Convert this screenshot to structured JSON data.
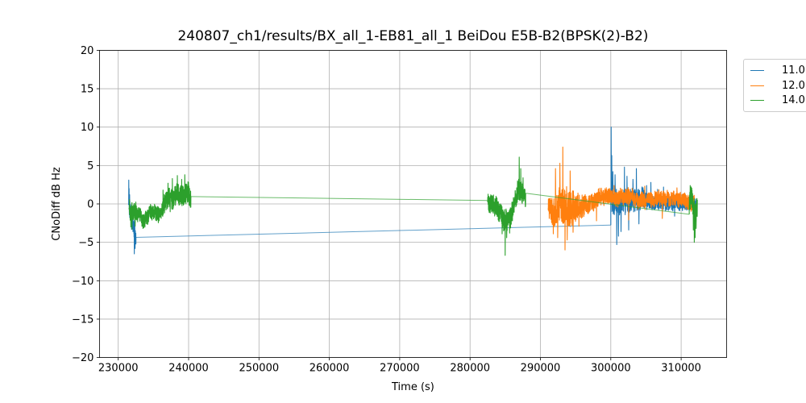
{
  "figure": {
    "title": "240807_ch1/results/BX_all_1-EB81_all_1 BeiDou E5B-B2(BPSK(2)-B2)",
    "xlabel": "Time (s)",
    "ylabel": "CNoDiff dB Hz"
  },
  "chart_data": {
    "type": "line",
    "title": "240807_ch1/results/BX_all_1-EB81_all_1 BeiDou E5B-B2(BPSK(2)-B2)",
    "xlabel": "Time (s)",
    "ylabel": "CNoDiff dB Hz",
    "xlim": [
      227330,
      316460
    ],
    "ylim": [
      -20,
      20
    ],
    "xticks": [
      230000,
      240000,
      250000,
      260000,
      270000,
      280000,
      290000,
      300000,
      310000
    ],
    "yticks": [
      -20,
      -15,
      -10,
      -5,
      0,
      5,
      10,
      15,
      20
    ],
    "grid": true,
    "grid_color": "#b0b0b0",
    "legend": {
      "position": "outside-upper-right",
      "entries": [
        {
          "label": "11.0",
          "color": "#1f77b4"
        },
        {
          "label": "12.0",
          "color": "#ff7f0e"
        },
        {
          "label": "14.0",
          "color": "#2ca02c"
        }
      ]
    },
    "series": [
      {
        "name": "11.0",
        "color": "#1f77b4",
        "segments": [
          {
            "kind": "noise",
            "x0": 231460,
            "x1": 232520,
            "n": 90,
            "seed": 11,
            "mean": [
              [
                0,
                -0.2
              ],
              [
                0.25,
                -1.0
              ],
              [
                0.5,
                -1.8
              ],
              [
                0.75,
                -3.2
              ],
              [
                1,
                -4.3
              ]
            ],
            "amp": [
              [
                0,
                1.1
              ],
              [
                1,
                1.2
              ]
            ],
            "spikes": [
              [
                0.03,
                3.1
              ],
              [
                0.08,
                2.0
              ],
              [
                0.15,
                1.2
              ],
              [
                0.4,
                -3.3
              ],
              [
                0.6,
                -3.6
              ],
              [
                0.78,
                -6.5
              ],
              [
                0.88,
                -5.8
              ]
            ],
            "y_end": -4.35
          },
          {
            "kind": "line",
            "points": [
              [
                232520,
                -4.35
              ],
              [
                300000,
                -2.75
              ]
            ]
          },
          {
            "kind": "noise",
            "x0": 300000,
            "x1": 312100,
            "n": 700,
            "seed": 12,
            "lead_in": [
              300000,
              -2.75
            ],
            "walk": [
              0.18,
              0.45
            ],
            "mean": [
              [
                0,
                0.6
              ],
              [
                0.3,
                0.55
              ],
              [
                0.6,
                0.45
              ],
              [
                1,
                0.25
              ]
            ],
            "amp": [
              [
                0,
                1.6
              ],
              [
                0.35,
                1.5
              ],
              [
                0.45,
                1.0
              ],
              [
                0.7,
                0.9
              ],
              [
                1,
                0.8
              ]
            ],
            "spikes": [
              [
                0.004,
                10.0
              ],
              [
                0.012,
                6.3
              ],
              [
                0.025,
                4.2
              ],
              [
                0.05,
                3.8
              ],
              [
                0.07,
                -5.3
              ],
              [
                0.09,
                -4.2
              ],
              [
                0.12,
                -3.6
              ],
              [
                0.16,
                4.8
              ],
              [
                0.19,
                3.6
              ],
              [
                0.21,
                -3.4
              ],
              [
                0.26,
                3.2
              ],
              [
                0.3,
                4.6
              ],
              [
                0.33,
                -2.6
              ],
              [
                0.42,
                2.4
              ],
              [
                0.47,
                2.8
              ],
              [
                0.55,
                1.9
              ],
              [
                0.62,
                2.2
              ],
              [
                0.75,
                -1.6
              ]
            ]
          }
        ]
      },
      {
        "name": "12.0",
        "color": "#ff7f0e",
        "segments": [
          {
            "kind": "noise",
            "x0": 291100,
            "x1": 311900,
            "n": 1200,
            "seed": 21,
            "mean": [
              [
                0,
                -0.4
              ],
              [
                0.08,
                -0.5
              ],
              [
                0.16,
                -0.05
              ],
              [
                0.3,
                0.3
              ],
              [
                0.5,
                0.45
              ],
              [
                0.7,
                0.35
              ],
              [
                0.85,
                0.15
              ],
              [
                1,
                -0.1
              ]
            ],
            "amp": [
              [
                0,
                1.4
              ],
              [
                0.03,
                1.8
              ],
              [
                0.08,
                2.6
              ],
              [
                0.14,
                2.6
              ],
              [
                0.2,
                1.9
              ],
              [
                0.26,
                1.3
              ],
              [
                0.35,
                1.1
              ],
              [
                0.6,
                1.0
              ],
              [
                1,
                0.95
              ]
            ],
            "spikes": [
              [
                0.035,
                -3.9
              ],
              [
                0.05,
                4.6
              ],
              [
                0.065,
                -4.4
              ],
              [
                0.08,
                5.3
              ],
              [
                0.1,
                7.4
              ],
              [
                0.115,
                -6.0
              ],
              [
                0.13,
                -4.7
              ],
              [
                0.15,
                4.3
              ],
              [
                0.17,
                -3.7
              ],
              [
                0.21,
                -2.9
              ],
              [
                0.33,
                -2.2
              ],
              [
                0.45,
                2.4
              ],
              [
                0.55,
                -2.1
              ],
              [
                0.66,
                2.3
              ],
              [
                0.78,
                -1.9
              ],
              [
                0.88,
                2.1
              ]
            ]
          }
        ]
      },
      {
        "name": "14.0",
        "color": "#2ca02c",
        "segments": [
          {
            "kind": "noise",
            "x0": 231520,
            "x1": 240340,
            "n": 660,
            "seed": 41,
            "mean": [
              [
                0,
                -0.8
              ],
              [
                0.08,
                -1.3
              ],
              [
                0.2,
                -1.75
              ],
              [
                0.35,
                -1.6
              ],
              [
                0.45,
                -1.5
              ],
              [
                0.52,
                -1.1
              ],
              [
                0.58,
                -0.4
              ],
              [
                0.63,
                0.3
              ],
              [
                0.68,
                0.6
              ],
              [
                0.73,
                0.35
              ],
              [
                0.78,
                0.9
              ],
              [
                0.84,
                0.55
              ],
              [
                0.9,
                0.95
              ],
              [
                1,
                0.9
              ]
            ],
            "amp": [
              [
                0,
                1.3
              ],
              [
                0.15,
                1.0
              ],
              [
                0.5,
                1.0
              ],
              [
                0.62,
                1.35
              ],
              [
                1,
                1.35
              ]
            ],
            "spikes": [
              [
                0.03,
                -3.0
              ],
              [
                0.05,
                -3.3
              ],
              [
                0.1,
                -2.9
              ],
              [
                0.24,
                -3.1
              ],
              [
                0.55,
                1.8
              ],
              [
                0.63,
                2.7
              ],
              [
                0.7,
                3.3
              ],
              [
                0.78,
                3.7
              ],
              [
                0.85,
                3.2
              ],
              [
                0.9,
                3.8
              ],
              [
                0.96,
                2.8
              ]
            ],
            "y_end": 0.95
          },
          {
            "kind": "line",
            "points": [
              [
                240340,
                0.95
              ],
              [
                282500,
                0.45
              ]
            ]
          },
          {
            "kind": "noise",
            "x0": 282500,
            "x1": 287900,
            "n": 450,
            "seed": 42,
            "lead_in": [
              282500,
              0.45
            ],
            "mean": [
              [
                0,
                0.35
              ],
              [
                0.18,
                0.25
              ],
              [
                0.3,
                -0.55
              ],
              [
                0.42,
                -1.6
              ],
              [
                0.52,
                -2.0
              ],
              [
                0.62,
                -1.5
              ],
              [
                0.7,
                -0.4
              ],
              [
                0.78,
                0.9
              ],
              [
                0.88,
                1.9
              ],
              [
                1,
                1.35
              ]
            ],
            "amp": [
              [
                0,
                1.2
              ],
              [
                0.45,
                1.4
              ],
              [
                0.8,
                1.4
              ],
              [
                1,
                1.1
              ]
            ],
            "spikes": [
              [
                0.38,
                -3.9
              ],
              [
                0.46,
                -6.7
              ],
              [
                0.5,
                -4.4
              ],
              [
                0.58,
                -3.8
              ],
              [
                0.83,
                6.1
              ],
              [
                0.87,
                4.6
              ],
              [
                0.93,
                3.4
              ]
            ],
            "y_end": 1.4
          },
          {
            "kind": "line",
            "points": [
              [
                287900,
                1.4
              ],
              [
                311150,
                -1.35
              ]
            ]
          },
          {
            "kind": "noise",
            "x0": 311150,
            "x1": 312300,
            "n": 120,
            "seed": 43,
            "lead_in": [
              311150,
              -1.35
            ],
            "mean": [
              [
                0,
                0.3
              ],
              [
                0.25,
                0.6
              ],
              [
                0.45,
                -0.6
              ],
              [
                0.7,
                -1.8
              ],
              [
                1,
                -1.1
              ]
            ],
            "amp": [
              [
                0,
                1.2
              ],
              [
                1,
                1.5
              ]
            ],
            "spikes": [
              [
                0.12,
                2.4
              ],
              [
                0.2,
                1.9
              ],
              [
                0.5,
                -3.4
              ],
              [
                0.62,
                -5.0
              ],
              [
                0.72,
                -4.4
              ],
              [
                0.85,
                -3.2
              ]
            ]
          }
        ]
      }
    ]
  }
}
